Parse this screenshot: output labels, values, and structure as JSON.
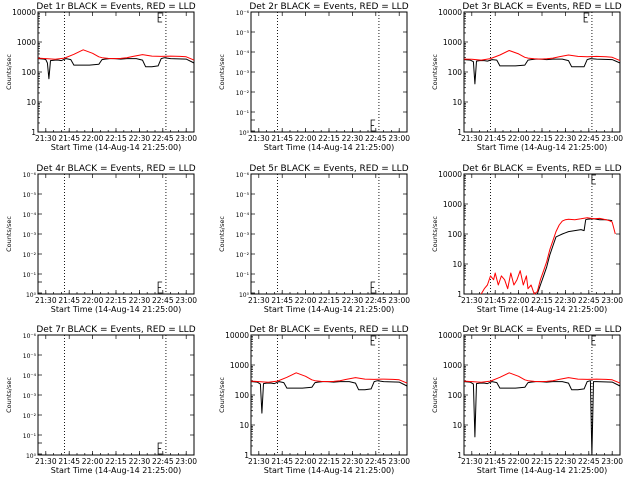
{
  "chart_data": [
    {
      "type": "line",
      "title": "Det 1r BLACK = Events, RED = LLD",
      "xlabel": "Start Time (14-Aug-14 21:25:00)",
      "ylabel": "Counts/sec",
      "scale": "log",
      "ylim": [
        1,
        10000
      ],
      "y_tick_labels": [
        "1",
        "10",
        "100",
        "1000",
        "10000"
      ],
      "x_tick_labels": [
        "21:30",
        "21:45",
        "22:00",
        "22:15",
        "22:30",
        "22:45",
        "23:00"
      ],
      "markers": [
        "21:42",
        "22:47"
      ],
      "box_marker": "22:42",
      "dummy": false,
      "series": [
        {
          "name": "BLACK = Events",
          "color": "#000000",
          "x": [
            "21:25",
            "21:29",
            "21:30",
            "21:31",
            "21:32",
            "21:33",
            "21:36",
            "21:38",
            "21:40",
            "21:43",
            "21:46",
            "21:48",
            "21:52",
            "21:58",
            "22:04",
            "22:06",
            "22:08",
            "22:11",
            "22:14",
            "22:18",
            "22:22",
            "22:28",
            "22:32",
            "22:34",
            "22:38",
            "22:42",
            "22:44",
            "22:46",
            "22:50",
            "23:00",
            "23:05"
          ],
          "y": [
            280,
            270,
            260,
            200,
            60,
            240,
            250,
            250,
            240,
            280,
            260,
            170,
            170,
            170,
            180,
            260,
            270,
            280,
            280,
            270,
            280,
            280,
            250,
            150,
            150,
            160,
            280,
            300,
            280,
            270,
            200
          ]
        },
        {
          "name": "RED = LLD",
          "color": "#ff0000",
          "x": [
            "21:25",
            "21:30",
            "21:36",
            "21:42",
            "21:48",
            "21:54",
            "22:00",
            "22:04",
            "22:06",
            "22:10",
            "22:14",
            "22:18",
            "22:22",
            "22:26",
            "22:32",
            "22:38",
            "22:44",
            "22:50",
            "22:56",
            "23:00",
            "23:05"
          ],
          "y": [
            290,
            280,
            265,
            290,
            390,
            550,
            420,
            320,
            300,
            285,
            280,
            285,
            300,
            330,
            380,
            340,
            330,
            340,
            330,
            320,
            250
          ]
        }
      ]
    },
    {
      "type": "line",
      "title": "Det 2r BLACK = Events, RED = LLD",
      "xlabel": "Start Time (14-Aug-14 21:25:00)",
      "ylabel": "Counts/sec",
      "scale": "log",
      "ylim": [
        1,
        1e-06
      ],
      "y_tick_labels": [
        "10⁰",
        "10⁻¹",
        "10⁻²",
        "10⁻³",
        "10⁻⁴",
        "10⁻⁵",
        "10⁻⁶"
      ],
      "x_tick_labels": [
        "21:30",
        "21:45",
        "22:00",
        "22:15",
        "22:30",
        "22:45",
        "23:00"
      ],
      "markers": [
        "21:42",
        "22:47"
      ],
      "box_marker": "22:42",
      "dummy": true,
      "series": []
    },
    {
      "type": "line",
      "title": "Det 3r BLACK = Events, RED = LLD",
      "xlabel": "Start Time (14-Aug-14 21:25:00)",
      "ylabel": "Counts/sec",
      "scale": "log",
      "ylim": [
        1,
        10000
      ],
      "y_tick_labels": [
        "1",
        "10",
        "100",
        "1000",
        "10000"
      ],
      "x_tick_labels": [
        "21:30",
        "21:45",
        "22:00",
        "22:15",
        "22:30",
        "22:45",
        "23:00"
      ],
      "markers": [
        "21:42",
        "22:47"
      ],
      "box_marker": "22:42",
      "dummy": false,
      "series": [
        {
          "name": "BLACK = Events",
          "color": "#000000",
          "x": [
            "21:25",
            "21:29",
            "21:31",
            "21:32",
            "21:33",
            "21:35",
            "21:38",
            "21:40",
            "21:43",
            "21:46",
            "21:48",
            "21:52",
            "21:58",
            "22:04",
            "22:06",
            "22:08",
            "22:11",
            "22:14",
            "22:18",
            "22:22",
            "22:28",
            "22:32",
            "22:34",
            "22:38",
            "22:42",
            "22:44",
            "22:46",
            "22:50",
            "23:00",
            "23:05"
          ],
          "y": [
            260,
            250,
            220,
            40,
            230,
            240,
            240,
            230,
            260,
            250,
            160,
            160,
            160,
            170,
            250,
            260,
            270,
            270,
            260,
            270,
            270,
            240,
            150,
            150,
            150,
            260,
            280,
            270,
            260,
            200
          ]
        },
        {
          "name": "RED = LLD",
          "color": "#ff0000",
          "x": [
            "21:25",
            "21:30",
            "21:36",
            "21:42",
            "21:48",
            "21:54",
            "22:00",
            "22:04",
            "22:06",
            "22:10",
            "22:14",
            "22:18",
            "22:22",
            "22:26",
            "22:32",
            "22:38",
            "22:44",
            "22:50",
            "22:56",
            "23:00",
            "23:05"
          ],
          "y": [
            270,
            265,
            250,
            280,
            370,
            520,
            400,
            310,
            290,
            275,
            270,
            275,
            290,
            320,
            370,
            330,
            320,
            330,
            320,
            310,
            240
          ]
        }
      ]
    },
    {
      "type": "line",
      "title": "Det 4r BLACK = Events, RED = LLD",
      "xlabel": "Start Time (14-Aug-14 21:25:00)",
      "ylabel": "Counts/sec",
      "scale": "log",
      "ylim": [
        1,
        1e-06
      ],
      "y_tick_labels": [
        "10⁰",
        "10⁻¹",
        "10⁻²",
        "10⁻³",
        "10⁻⁴",
        "10⁻⁵",
        "10⁻⁶"
      ],
      "x_tick_labels": [
        "21:30",
        "21:45",
        "22:00",
        "22:15",
        "22:30",
        "22:45",
        "23:00"
      ],
      "markers": [
        "21:42",
        "22:47"
      ],
      "box_marker": "22:42",
      "dummy": true,
      "series": []
    },
    {
      "type": "line",
      "title": "Det 5r BLACK = Events, RED = LLD",
      "xlabel": "Start Time (14-Aug-14 21:25:00)",
      "ylabel": "Counts/sec",
      "scale": "log",
      "ylim": [
        1,
        1e-06
      ],
      "y_tick_labels": [
        "10⁰",
        "10⁻¹",
        "10⁻²",
        "10⁻³",
        "10⁻⁴",
        "10⁻⁵",
        "10⁻⁶"
      ],
      "x_tick_labels": [
        "21:30",
        "21:45",
        "22:00",
        "22:15",
        "22:30",
        "22:45",
        "23:00"
      ],
      "markers": [
        "21:42",
        "22:47"
      ],
      "box_marker": "22:42",
      "dummy": true,
      "series": []
    },
    {
      "type": "line",
      "title": "Det 6r BLACK = Events, RED = LLD",
      "xlabel": "Start Time (14-Aug-14 21:25:00)",
      "ylabel": "Counts/sec",
      "scale": "log",
      "ylim": [
        1,
        10000
      ],
      "y_tick_labels": [
        "1",
        "10",
        "100",
        "1000",
        "10000"
      ],
      "x_tick_labels": [
        "21:30",
        "21:45",
        "22:00",
        "22:15",
        "22:30",
        "22:45",
        "23:00"
      ],
      "markers": [
        "21:42",
        "22:47"
      ],
      "box_marker": "22:47",
      "dummy": false,
      "series": [
        {
          "name": "BLACK = Events",
          "color": "#000000",
          "x": [
            "22:12",
            "22:14",
            "22:16",
            "22:18",
            "22:20",
            "22:22",
            "22:24",
            "22:26",
            "22:28",
            "22:30",
            "22:32",
            "22:36",
            "22:40",
            "22:42",
            "22:43",
            "22:44",
            "22:48",
            "22:52",
            "22:56",
            "23:00"
          ],
          "y": [
            1,
            2,
            4,
            8,
            20,
            40,
            80,
            90,
            100,
            110,
            120,
            130,
            140,
            130,
            300,
            310,
            320,
            300,
            300,
            280
          ]
        },
        {
          "name": "RED = LLD",
          "color": "#ff0000",
          "x": [
            "21:36",
            "21:38",
            "21:40",
            "21:42",
            "21:44",
            "21:45",
            "21:47",
            "21:49",
            "21:51",
            "21:53",
            "21:55",
            "21:57",
            "21:59",
            "22:01",
            "22:03",
            "22:05",
            "22:06",
            "22:08",
            "22:10",
            "22:12",
            "22:14",
            "22:16",
            "22:18",
            "22:20",
            "22:22",
            "22:24",
            "22:26",
            "22:28",
            "22:30",
            "22:32",
            "22:36",
            "22:40",
            "22:44",
            "22:48",
            "22:52",
            "22:56",
            "22:58",
            "23:00",
            "23:02"
          ],
          "y": [
            1,
            1.5,
            2,
            4,
            3,
            5,
            2,
            4,
            3,
            1.5,
            5,
            2,
            3,
            6,
            2,
            4,
            1.5,
            2,
            1,
            1.2,
            3,
            6,
            12,
            30,
            60,
            120,
            200,
            270,
            300,
            310,
            300,
            320,
            350,
            320,
            330,
            300,
            280,
            250,
            100
          ]
        }
      ]
    },
    {
      "type": "line",
      "title": "Det 7r BLACK = Events, RED = LLD",
      "xlabel": "Start Time (14-Aug-14 21:25:00)",
      "ylabel": "Counts/sec",
      "scale": "log",
      "ylim": [
        1,
        1e-06
      ],
      "y_tick_labels": [
        "10⁰",
        "10⁻¹",
        "10⁻²",
        "10⁻³",
        "10⁻⁴",
        "10⁻⁵",
        "10⁻⁶"
      ],
      "x_tick_labels": [
        "21:30",
        "21:45",
        "22:00",
        "22:15",
        "22:30",
        "22:45",
        "23:00"
      ],
      "markers": [
        "21:42",
        "22:47"
      ],
      "box_marker": "22:42",
      "dummy": true,
      "series": []
    },
    {
      "type": "line",
      "title": "Det 8r BLACK = Events, RED = LLD",
      "xlabel": "Start Time (14-Aug-14 21:25:00)",
      "ylabel": "Counts/sec",
      "scale": "log",
      "ylim": [
        1,
        10000
      ],
      "y_tick_labels": [
        "1",
        "10",
        "100",
        "1000",
        "10000"
      ],
      "x_tick_labels": [
        "21:30",
        "21:45",
        "22:00",
        "22:15",
        "22:30",
        "22:45",
        "23:00"
      ],
      "markers": [
        "21:42",
        "22:47"
      ],
      "box_marker": "22:42",
      "dummy": false,
      "series": [
        {
          "name": "BLACK = Events",
          "color": "#000000",
          "x": [
            "21:25",
            "21:29",
            "21:31",
            "21:32",
            "21:33",
            "21:35",
            "21:38",
            "21:40",
            "21:43",
            "21:46",
            "21:48",
            "21:52",
            "21:58",
            "22:04",
            "22:06",
            "22:08",
            "22:11",
            "22:14",
            "22:18",
            "22:22",
            "22:28",
            "22:32",
            "22:34",
            "22:38",
            "22:42",
            "22:44",
            "22:46",
            "22:50",
            "23:00",
            "23:05"
          ],
          "y": [
            280,
            270,
            230,
            25,
            240,
            250,
            250,
            240,
            280,
            260,
            170,
            170,
            170,
            180,
            260,
            270,
            280,
            280,
            270,
            280,
            280,
            250,
            150,
            150,
            160,
            280,
            300,
            280,
            270,
            200
          ]
        },
        {
          "name": "RED = LLD",
          "color": "#ff0000",
          "x": [
            "21:25",
            "21:30",
            "21:36",
            "21:42",
            "21:48",
            "21:54",
            "22:00",
            "22:04",
            "22:06",
            "22:10",
            "22:14",
            "22:18",
            "22:22",
            "22:26",
            "22:32",
            "22:38",
            "22:44",
            "22:50",
            "22:56",
            "23:00",
            "23:05"
          ],
          "y": [
            290,
            280,
            265,
            290,
            390,
            550,
            420,
            320,
            300,
            285,
            280,
            285,
            300,
            330,
            380,
            340,
            330,
            340,
            330,
            320,
            250
          ]
        }
      ]
    },
    {
      "type": "line",
      "title": "Det 9r BLACK = Events, RED = LLD",
      "xlabel": "Start Time (14-Aug-14 21:25:00)",
      "ylabel": "Counts/sec",
      "scale": "log",
      "ylim": [
        1,
        10000
      ],
      "y_tick_labels": [
        "1",
        "10",
        "100",
        "1000",
        "10000"
      ],
      "x_tick_labels": [
        "21:30",
        "21:45",
        "22:00",
        "22:15",
        "22:30",
        "22:45",
        "23:00"
      ],
      "markers": [
        "21:42",
        "22:47"
      ],
      "box_marker": "22:47",
      "dummy": false,
      "series": [
        {
          "name": "BLACK = Events",
          "color": "#000000",
          "x": [
            "21:25",
            "21:29",
            "21:31",
            "21:32",
            "21:33",
            "21:35",
            "21:38",
            "21:40",
            "21:43",
            "21:46",
            "21:48",
            "21:52",
            "21:58",
            "22:04",
            "22:06",
            "22:08",
            "22:11",
            "22:14",
            "22:18",
            "22:22",
            "22:28",
            "22:32",
            "22:34",
            "22:38",
            "22:42",
            "22:44",
            "22:46",
            "22:47",
            "22:48",
            "22:50",
            "23:00",
            "23:05"
          ],
          "y": [
            280,
            270,
            230,
            4,
            240,
            250,
            250,
            240,
            280,
            260,
            170,
            170,
            170,
            180,
            260,
            270,
            280,
            280,
            270,
            280,
            280,
            250,
            150,
            150,
            160,
            280,
            300,
            1,
            280,
            280,
            270,
            200
          ]
        },
        {
          "name": "RED = LLD",
          "color": "#ff0000",
          "x": [
            "21:25",
            "21:30",
            "21:36",
            "21:42",
            "21:48",
            "21:54",
            "22:00",
            "22:04",
            "22:06",
            "22:10",
            "22:14",
            "22:18",
            "22:22",
            "22:26",
            "22:32",
            "22:38",
            "22:44",
            "22:50",
            "22:56",
            "23:00",
            "23:05"
          ],
          "y": [
            290,
            280,
            265,
            290,
            390,
            550,
            420,
            320,
            300,
            285,
            280,
            285,
            300,
            330,
            380,
            340,
            330,
            340,
            330,
            320,
            250
          ]
        }
      ]
    }
  ]
}
